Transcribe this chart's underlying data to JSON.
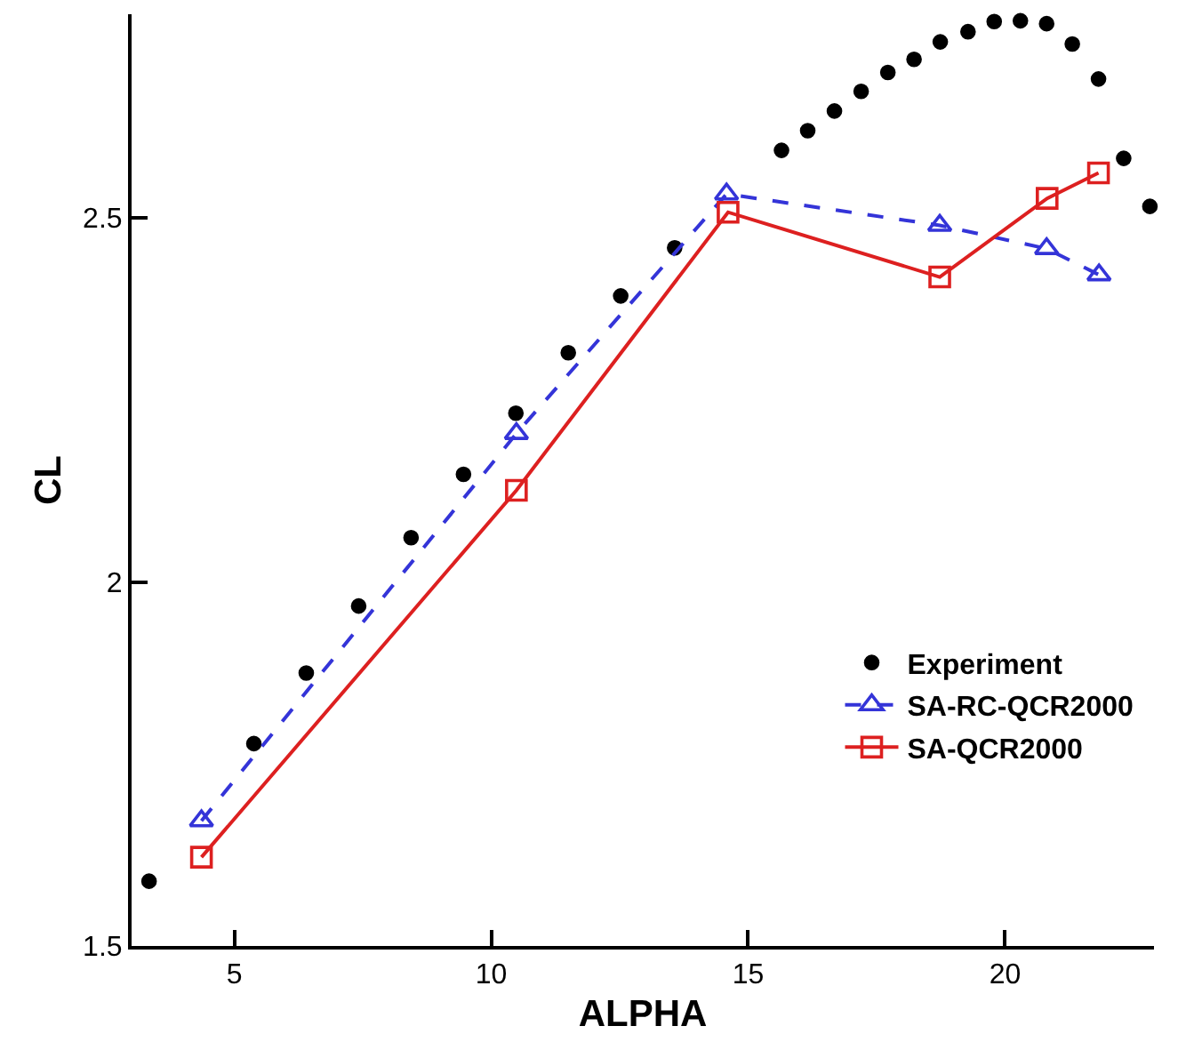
{
  "chart_data": {
    "type": "scatter",
    "xlabel": "ALPHA",
    "ylabel": "CL",
    "xlim": [
      3,
      22.9
    ],
    "xticks": [
      5,
      10,
      15,
      20
    ],
    "ylim": [
      1.5,
      2.78
    ],
    "yticks": [
      1.5,
      2,
      2.5
    ],
    "grid": false,
    "legend": "bottom right",
    "series": [
      {
        "name": "Experiment",
        "color": "#000000",
        "marker": "circle",
        "x": [
          3.34,
          5.38,
          6.4,
          7.42,
          8.44,
          9.46,
          10.48,
          11.5,
          12.52,
          13.57,
          15.65,
          16.16,
          16.68,
          17.2,
          17.72,
          18.23,
          18.74,
          19.28,
          19.79,
          20.3,
          20.81,
          21.31,
          21.82,
          22.31,
          22.82
        ],
        "values": [
          1.589,
          1.778,
          1.875,
          1.967,
          2.061,
          2.148,
          2.232,
          2.315,
          2.393,
          2.459,
          2.593,
          2.62,
          2.647,
          2.674,
          2.7,
          2.718,
          2.742,
          2.756,
          2.77,
          2.771,
          2.767,
          2.739,
          2.691,
          2.582,
          2.516
        ]
      },
      {
        "name": "SA-RC-QCR2000",
        "type": "line",
        "color": "#3434d8",
        "marker": "triangle",
        "line_style": "dashed",
        "x": [
          4.36,
          10.49,
          14.58,
          18.73,
          20.81,
          21.83
        ],
        "values": [
          1.672,
          2.204,
          2.533,
          2.49,
          2.458,
          2.422
        ]
      },
      {
        "name": "SA-QCR2000",
        "type": "line",
        "color": "#dd2020",
        "marker": "square",
        "line_style": "solid",
        "x": [
          4.36,
          10.49,
          14.61,
          18.73,
          20.82,
          21.82
        ],
        "values": [
          1.622,
          2.126,
          2.508,
          2.419,
          2.527,
          2.562
        ]
      }
    ]
  }
}
